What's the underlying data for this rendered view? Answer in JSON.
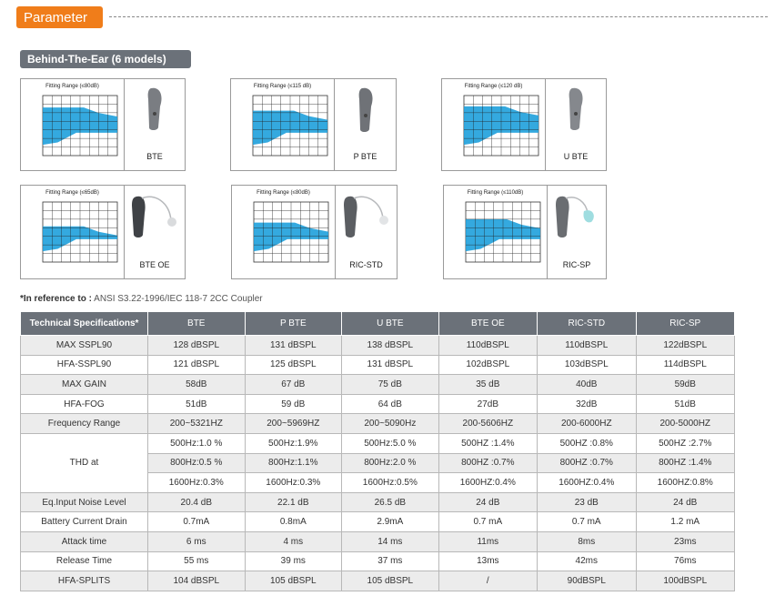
{
  "header": {
    "tab_label": "Parameter"
  },
  "section": {
    "title": "Behind-The-Ear (6 models)"
  },
  "products": [
    {
      "name": "BTE",
      "range": "Fitting Range (≤80dB)",
      "fill": 0.78
    },
    {
      "name": "P BTE",
      "range": "Fitting Range (≤115 dB)",
      "fill": 0.72
    },
    {
      "name": "U BTE",
      "range": "Fitting Range (≤120 dB)",
      "fill": 0.8
    },
    {
      "name": "BTE OE",
      "range": "Fitting Range (≤65dB)",
      "fill": 0.55
    },
    {
      "name": "RIC-STD",
      "range": "Fitting Range (≤80dB)",
      "fill": 0.62
    },
    {
      "name": "RIC-SP",
      "range": "Fitting Range (≤110dB)",
      "fill": 0.68
    }
  ],
  "reference": {
    "prefix": "*In reference to :",
    "text": " ANSI S3.22-1996/IEC 118-7 2CC Coupler"
  },
  "table": {
    "headers": [
      "Technical Specifications*",
      "BTE",
      "P BTE",
      "U BTE",
      "BTE OE",
      "RIC-STD",
      "RIC-SP"
    ],
    "rows": [
      {
        "label": "MAX SSPL90",
        "values": [
          "128 dBSPL",
          "131 dBSPL",
          "138 dBSPL",
          "110dBSPL",
          "110dBSPL",
          "122dBSPL"
        ]
      },
      {
        "label": "HFA-SSPL90",
        "values": [
          "121 dBSPL",
          "125 dBSPL",
          "131 dBSPL",
          "102dBSPL",
          "103dBSPL",
          "114dBSPL"
        ]
      },
      {
        "label": "MAX GAIN",
        "values": [
          "58dB",
          "67 dB",
          "75 dB",
          "35 dB",
          "40dB",
          "59dB"
        ]
      },
      {
        "label": "HFA-FOG",
        "values": [
          "51dB",
          "59 dB",
          "64 dB",
          "27dB",
          "32dB",
          "51dB"
        ]
      },
      {
        "label": "Frequency Range",
        "values": [
          "200~5321HZ",
          "200~5969HZ",
          "200~5090Hz",
          "200-5606HZ",
          "200-6000HZ",
          "200-5000HZ"
        ]
      }
    ],
    "thd": {
      "label": "THD at",
      "rows": [
        [
          "500Hz:1.0 %",
          "500Hz:1.9%",
          "500Hz:5.0 %",
          "500HZ :1.4%",
          "500HZ :0.8%",
          "500HZ :2.7%"
        ],
        [
          "800Hz:0.5 %",
          "800Hz:1.1%",
          "800Hz:2.0 %",
          "800HZ :0.7%",
          "800HZ :0.7%",
          "800HZ :1.4%"
        ],
        [
          "1600Hz:0.3%",
          "1600Hz:0.3%",
          "1600Hz:0.5%",
          "1600HZ:0.4%",
          "1600HZ:0.4%",
          "1600HZ:0.8%"
        ]
      ]
    },
    "rows_after": [
      {
        "label": "Eq.Input Noise Level",
        "values": [
          "20.4 dB",
          "22.1 dB",
          "26.5 dB",
          "24 dB",
          "23 dB",
          "24 dB"
        ]
      },
      {
        "label": "Battery Current Drain",
        "values": [
          "0.7mA",
          "0.8mA",
          "2.9mA",
          "0.7 mA",
          "0.7 mA",
          "1.2 mA"
        ]
      },
      {
        "label": "Attack time",
        "values": [
          "6 ms",
          "4 ms",
          "14 ms",
          "11ms",
          "8ms",
          "23ms"
        ]
      },
      {
        "label": "Release Time",
        "values": [
          "55 ms",
          "39 ms",
          "37 ms",
          "13ms",
          "42ms",
          "76ms"
        ]
      },
      {
        "label": "HFA-SPLITS",
        "values": [
          "104 dBSPL",
          "105 dBSPL",
          "105 dBSPL",
          "/",
          "90dBSPL",
          "100dBSPL"
        ]
      }
    ]
  }
}
